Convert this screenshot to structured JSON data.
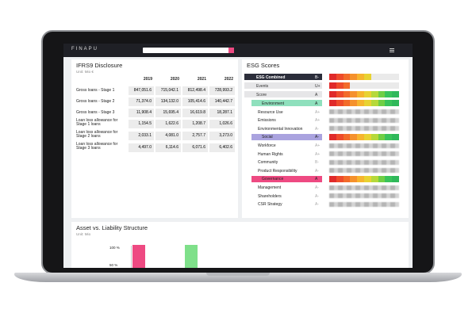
{
  "header": {
    "brand": "FINAPU"
  },
  "ifrs": {
    "title": "IFRS9 Disclosure",
    "unit": "Unit: Mio €",
    "columns": [
      "2019",
      "2020",
      "2021",
      "2022"
    ],
    "rows": [
      {
        "label": "Gross loans - Stage 1",
        "values": [
          "847,051.6",
          "715,042.1",
          "812,498.4",
          "728,993.2"
        ]
      },
      {
        "label": "Gross loans - Stage 2",
        "values": [
          "71,374.0",
          "134,132.0",
          "105,414.6",
          "140,442.7"
        ]
      },
      {
        "label": "Gross loans - Stage 3",
        "values": [
          "11,908.4",
          "15,695.4",
          "16,619.8",
          "18,287.1"
        ]
      },
      {
        "label": "Loan loss allowance for Stage 1 loans",
        "values": [
          "1,154.5",
          "1,622.6",
          "1,208.7",
          "1,026.6"
        ]
      },
      {
        "label": "Loan loss allowance for Stage 2 loans",
        "values": [
          "2,033.1",
          "4,081.0",
          "2,757.7",
          "3,273.0"
        ]
      },
      {
        "label": "Loan loss allowance for Stage 3 loans",
        "values": [
          "4,497.0",
          "6,114.6",
          "6,071.6",
          "6,402.6"
        ]
      }
    ]
  },
  "esg": {
    "title": "ESG Scores",
    "summary": [
      {
        "label": "ESG Combined",
        "grade": "B-"
      },
      {
        "label": "Events",
        "grade": "U+"
      },
      {
        "label": "Score",
        "grade": "A"
      }
    ],
    "pillars": [
      {
        "label": "Environment",
        "grade": "A",
        "color": "#8fe0bd",
        "items": [
          {
            "label": "Resource Use",
            "grade": "A+"
          },
          {
            "label": "Emissions",
            "grade": "A+"
          },
          {
            "label": "Environmental Innovation",
            "grade": "A-"
          }
        ]
      },
      {
        "label": "Social",
        "grade": "A-",
        "color": "#aaa3df",
        "items": [
          {
            "label": "Workforce",
            "grade": "A+"
          },
          {
            "label": "Human Rights",
            "grade": "A+"
          },
          {
            "label": "Community",
            "grade": "B-"
          },
          {
            "label": "Product Responsibility",
            "grade": "A-"
          }
        ]
      },
      {
        "label": "Governance",
        "grade": "A",
        "color": "#ee4a82",
        "items": [
          {
            "label": "Management",
            "grade": "A-"
          },
          {
            "label": "Shareholders",
            "grade": "A-"
          },
          {
            "label": "CSR Strategy",
            "grade": "A-"
          }
        ]
      }
    ]
  },
  "asset": {
    "title": "Asset vs. Liability Structure",
    "unit": "Unit: Mio",
    "axis_labels": [
      "100 %",
      "50 %"
    ]
  }
}
